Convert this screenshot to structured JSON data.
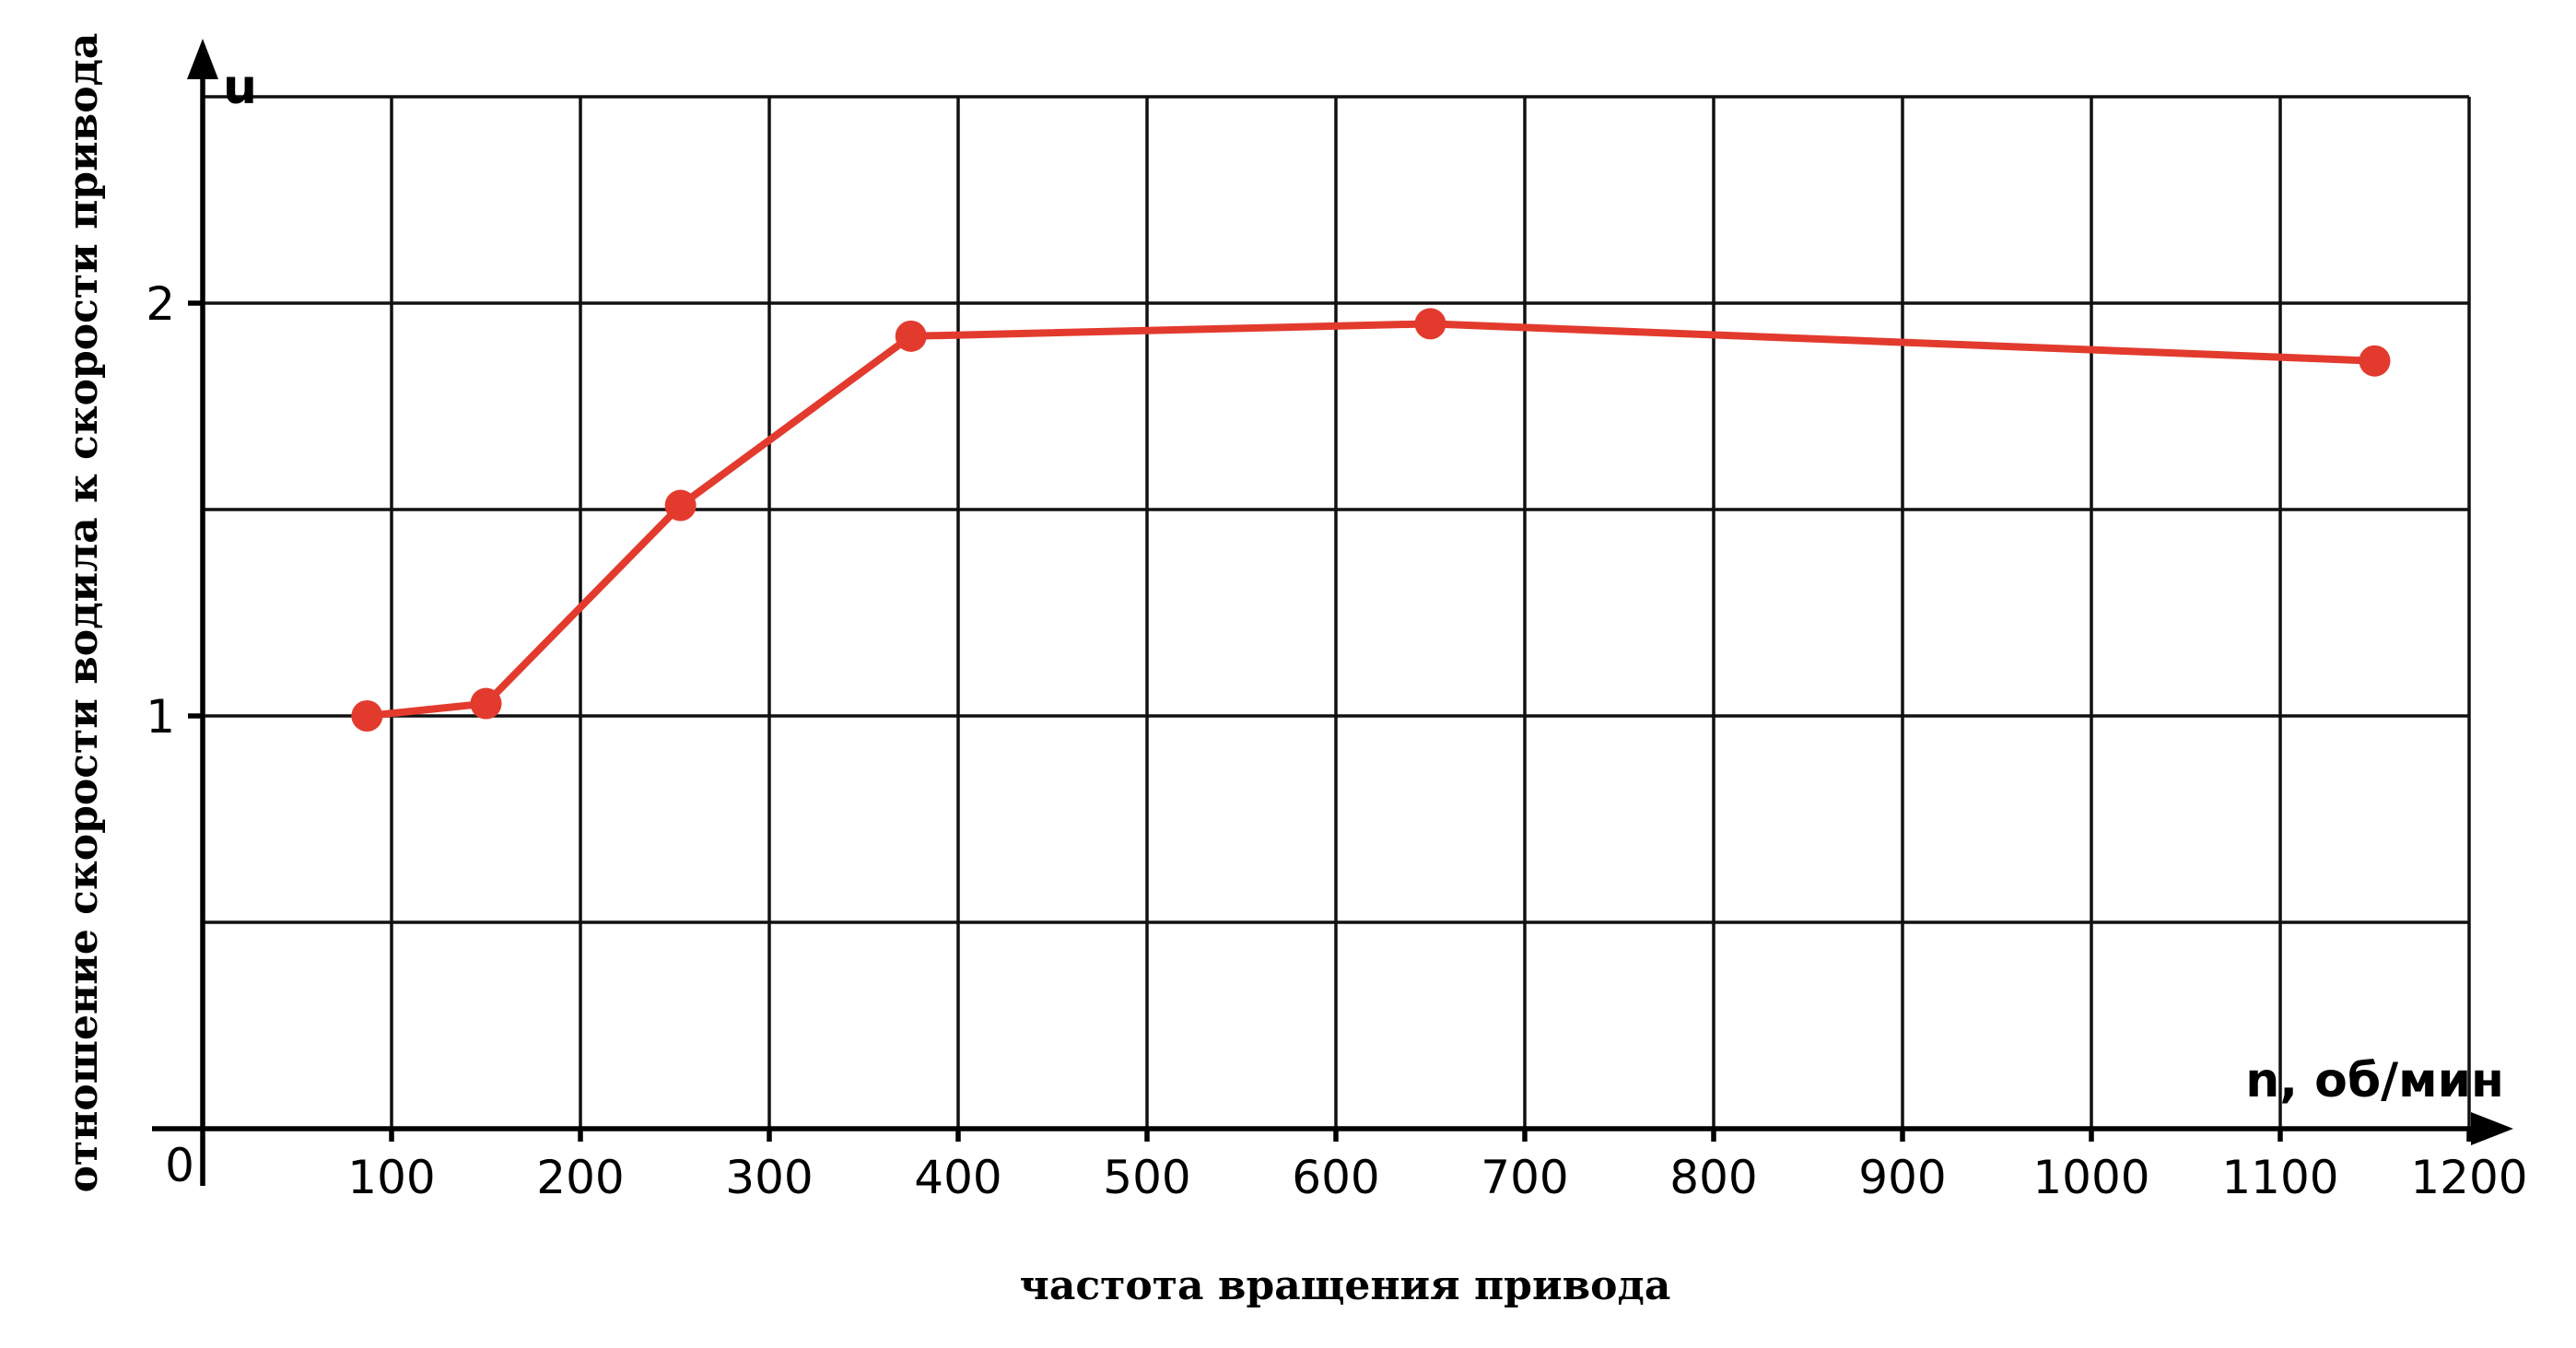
{
  "chart_data": {
    "type": "line",
    "title": "",
    "xlabel": "частота вращения привода",
    "ylabel": "отношение скорости водила к скорости привода",
    "x_axis_unit_label": "n, об/мин",
    "y_axis_unit_label": "u",
    "origin_label": "0",
    "xlim": [
      0,
      1200
    ],
    "ylim": [
      0,
      2.5
    ],
    "x_ticks": [
      100,
      200,
      300,
      400,
      500,
      600,
      700,
      800,
      900,
      1000,
      1100,
      1200
    ],
    "x_tick_labels": [
      "100",
      "200",
      "300",
      "400",
      "500",
      "600",
      "700",
      "800",
      "900",
      "1000",
      "1100",
      "1200"
    ],
    "y_gridlines": [
      0.5,
      1,
      1.5,
      2,
      2.5
    ],
    "y_tick_labels": [
      {
        "value": 1,
        "label": "1"
      },
      {
        "value": 2,
        "label": "2"
      }
    ],
    "grid": true,
    "legend": "none",
    "series": [
      {
        "color": "#e23b2e",
        "x": [
          87,
          150,
          253,
          375,
          650,
          1150
        ],
        "y": [
          1.0,
          1.03,
          1.51,
          1.92,
          1.95,
          1.86
        ]
      }
    ]
  }
}
